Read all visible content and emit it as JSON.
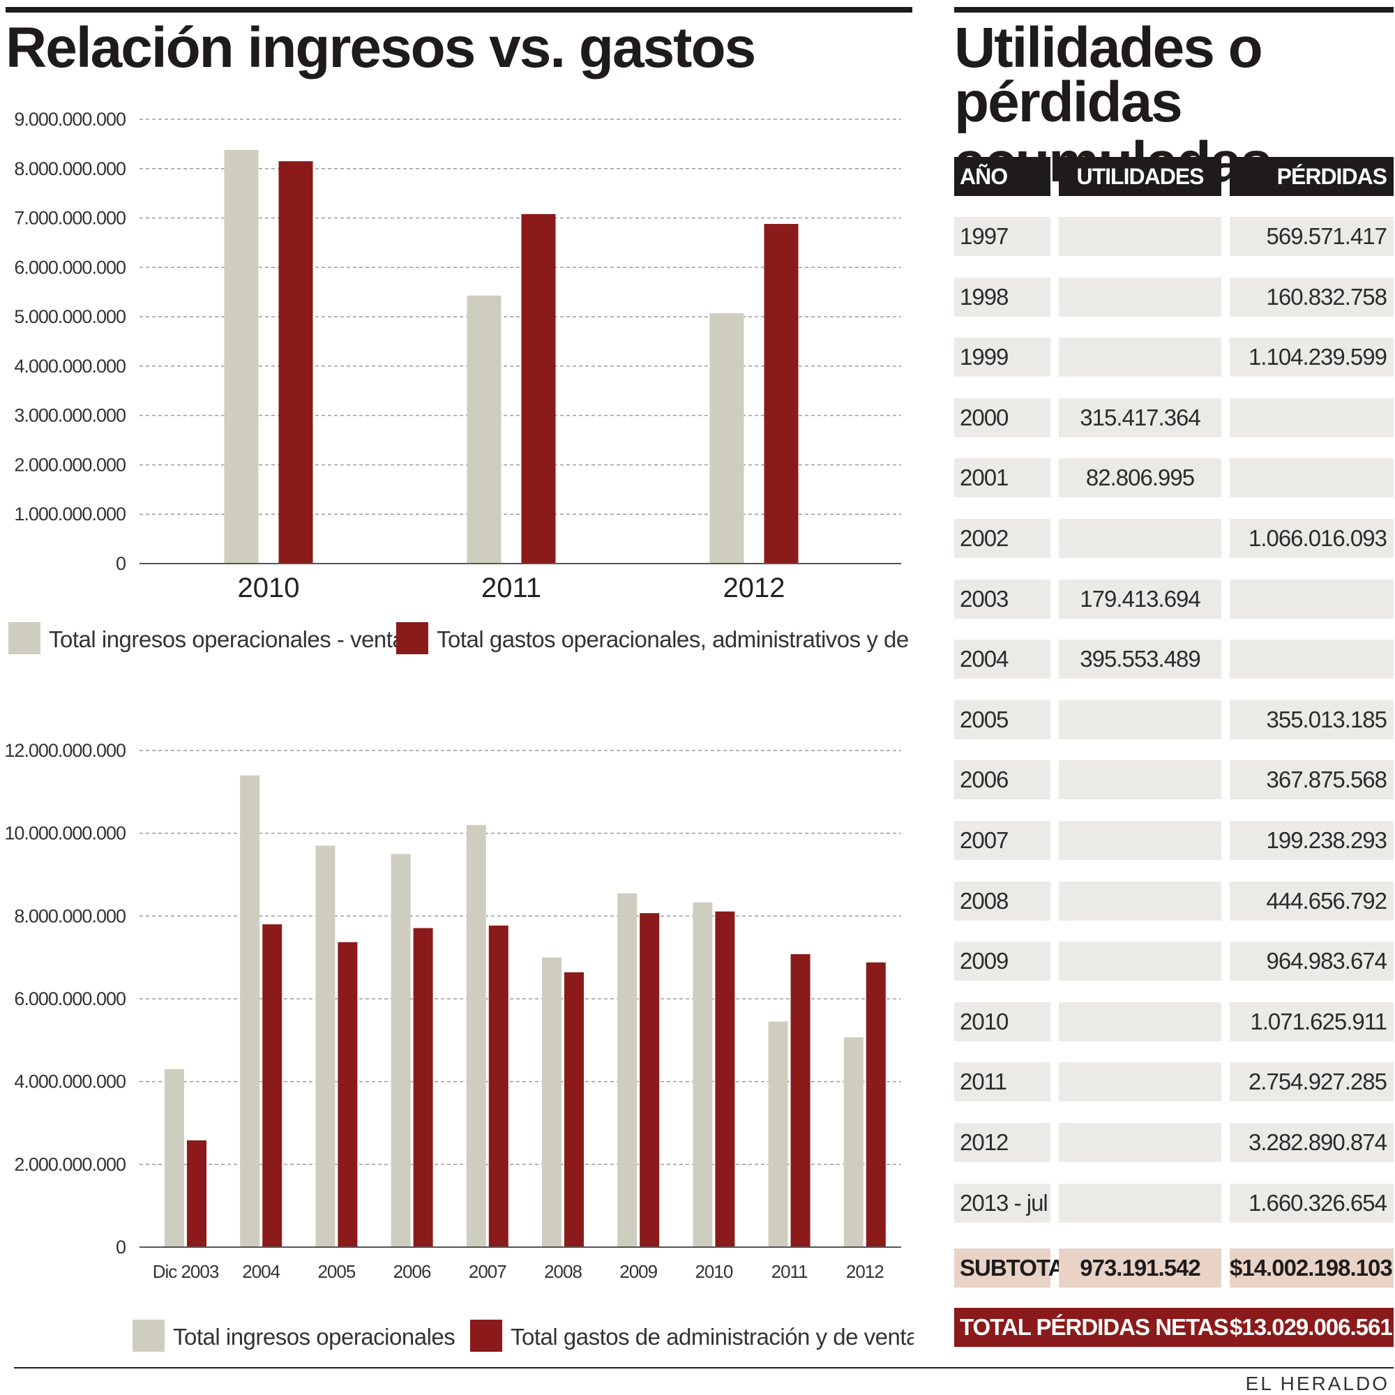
{
  "colors": {
    "ingresos": "#cfcdbf",
    "gastos": "#8b1a1a",
    "dark": "#1f1b1b",
    "row_bg": "#ebeae6",
    "subtotal_bg": "#e8d3c6"
  },
  "left_title": "Relación ingresos vs. gastos",
  "right_title_line1": "Utilidades o",
  "right_title_line2": "pérdidas acumuladas",
  "chart_data": [
    {
      "type": "bar",
      "categories": [
        "2010",
        "2011",
        "2012"
      ],
      "series": [
        {
          "name": "Total ingresos operacionales - ventas",
          "values": [
            8380000000,
            5430000000,
            5070000000
          ]
        },
        {
          "name": "Total gastos operacionales, administrativos y de ventas",
          "values": [
            8150000000,
            7080000000,
            6880000000
          ]
        }
      ],
      "ylim": [
        0,
        9000000000
      ],
      "yticks": [
        0,
        1000000000,
        2000000000,
        3000000000,
        4000000000,
        5000000000,
        6000000000,
        7000000000,
        8000000000,
        9000000000
      ],
      "ytick_labels": [
        "0",
        "1.000.000.000",
        "2.000.000.000",
        "3.000.000.000",
        "4.000.000.000",
        "5.000.000.000",
        "6.000.000.000",
        "7.000.000.000",
        "8.000.000.000",
        "9.000.000.000"
      ],
      "legend_placement": "bottom"
    },
    {
      "type": "bar",
      "categories": [
        "Dic 2003",
        "2004",
        "2005",
        "2006",
        "2007",
        "2008",
        "2009",
        "2010",
        "2011",
        "2012"
      ],
      "series": [
        {
          "name": "Total ingresos operacionales",
          "values": [
            4300000000,
            11400000000,
            9700000000,
            9500000000,
            10200000000,
            7000000000,
            8550000000,
            8330000000,
            5450000000,
            5070000000
          ]
        },
        {
          "name": "Total gastos de administración y de ventas",
          "values": [
            2580000000,
            7800000000,
            7370000000,
            7710000000,
            7770000000,
            6640000000,
            8070000000,
            8110000000,
            7080000000,
            6880000000
          ]
        }
      ],
      "ylim": [
        0,
        12000000000
      ],
      "yticks": [
        0,
        2000000000,
        4000000000,
        6000000000,
        8000000000,
        10000000000,
        12000000000
      ],
      "ytick_labels": [
        "0",
        "2.000.000.000",
        "4.000.000.000",
        "6.000.000.000",
        "8.000.000.000",
        "10.000.000.000",
        "12.000.000.000"
      ],
      "legend_placement": "bottom"
    }
  ],
  "table": {
    "headers": {
      "year": "AÑO",
      "util": "UTILIDADES",
      "perd": "PÉRDIDAS"
    },
    "rows": [
      {
        "year": "1997",
        "util": "",
        "perd": "569.571.417"
      },
      {
        "year": "1998",
        "util": "",
        "perd": "160.832.758"
      },
      {
        "year": "1999",
        "util": "",
        "perd": "1.104.239.599"
      },
      {
        "year": "2000",
        "util": "315.417.364",
        "perd": ""
      },
      {
        "year": "2001",
        "util": "82.806.995",
        "perd": ""
      },
      {
        "year": "2002",
        "util": "",
        "perd": "1.066.016.093"
      },
      {
        "year": "2003",
        "util": "179.413.694",
        "perd": ""
      },
      {
        "year": "2004",
        "util": "395.553.489",
        "perd": ""
      },
      {
        "year": "2005",
        "util": "",
        "perd": "355.013.185"
      },
      {
        "year": "2006",
        "util": "",
        "perd": "367.875.568"
      },
      {
        "year": "2007",
        "util": "",
        "perd": "199.238.293"
      },
      {
        "year": "2008",
        "util": "",
        "perd": "444.656.792"
      },
      {
        "year": "2009",
        "util": "",
        "perd": "964.983.674"
      },
      {
        "year": "2010",
        "util": "",
        "perd": "1.071.625.911"
      },
      {
        "year": "2011",
        "util": "",
        "perd": "2.754.927.285"
      },
      {
        "year": "2012",
        "util": "",
        "perd": "3.282.890.874"
      },
      {
        "year": "2013 - jul",
        "util": "",
        "perd": "1.660.326.654"
      }
    ],
    "subtotal": {
      "label": "SUBTOTAL",
      "util": "973.191.542",
      "perd": "$14.002.198.103"
    },
    "total": {
      "label": "TOTAL PÉRDIDAS NETAS",
      "value": "$13.029.006.561"
    }
  },
  "brand": "EL HERALDO"
}
